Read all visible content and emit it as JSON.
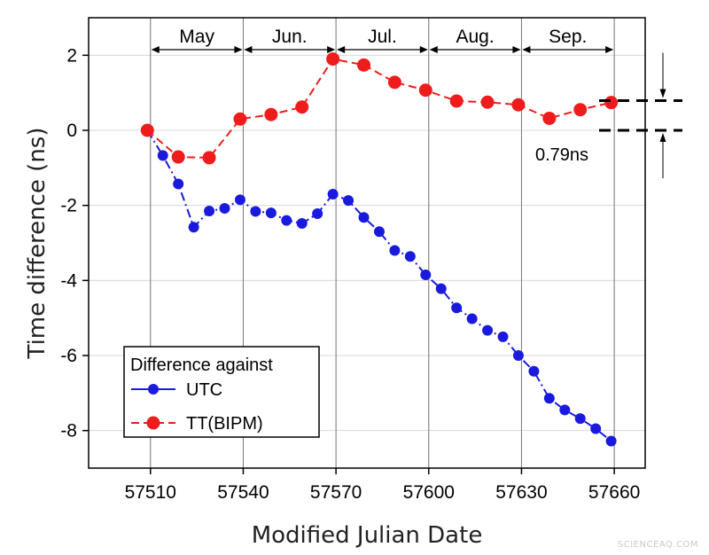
{
  "chart_data": {
    "type": "line",
    "xlabel": "Modified Julian Date",
    "ylabel": "Time difference (ns)",
    "xlim": [
      57490,
      57670
    ],
    "ylim": [
      -9,
      3
    ],
    "x_ticks": [
      57510,
      57540,
      57570,
      57600,
      57630,
      57660
    ],
    "y_ticks": [
      2,
      0,
      -2,
      -4,
      -6,
      -8
    ],
    "x_tick_labels": [
      "57510",
      "57540",
      "57570",
      "57600",
      "57630",
      "57660"
    ],
    "y_tick_labels": [
      "2",
      "0",
      "-2",
      "-4",
      "-6",
      "-8"
    ],
    "grid": true,
    "legend": {
      "title": "Difference against",
      "position": "bottom-left",
      "entries": [
        "UTC",
        "TT(BIPM)"
      ]
    },
    "months": [
      {
        "label": "May",
        "start": 57510,
        "end": 57540
      },
      {
        "label": "Jun.",
        "start": 57540,
        "end": 57570
      },
      {
        "label": "Jul.",
        "start": 57570,
        "end": 57600
      },
      {
        "label": "Aug.",
        "start": 57600,
        "end": 57630
      },
      {
        "label": "Sep.",
        "start": 57630,
        "end": 57660
      }
    ],
    "annotation": {
      "text": "0.79ns",
      "upper": 0.79,
      "lower": 0.0
    },
    "series": [
      {
        "name": "UTC",
        "color": "#1a1adf",
        "line_style": "dash-dot",
        "x": [
          57509,
          57514,
          57519,
          57524,
          57529,
          57534,
          57539,
          57544,
          57549,
          57554,
          57559,
          57564,
          57569,
          57574,
          57579,
          57584,
          57589,
          57594,
          57599,
          57604,
          57609,
          57614,
          57619,
          57624,
          57629,
          57634,
          57639,
          57644,
          57649,
          57654,
          57659
        ],
        "y": [
          0.0,
          -0.67,
          -1.43,
          -2.58,
          -2.15,
          -2.08,
          -1.85,
          -2.16,
          -2.2,
          -2.4,
          -2.48,
          -2.22,
          -1.7,
          -1.87,
          -2.32,
          -2.7,
          -3.2,
          -3.36,
          -3.85,
          -4.22,
          -4.73,
          -5.02,
          -5.33,
          -5.5,
          -6.0,
          -6.42,
          -7.14,
          -7.45,
          -7.68,
          -7.95,
          -8.28
        ]
      },
      {
        "name": "TT(BIPM)",
        "color": "#ef1c1c",
        "line_style": "dash",
        "x": [
          57509,
          57519,
          57529,
          57539,
          57549,
          57559,
          57569,
          57579,
          57589,
          57599,
          57609,
          57619,
          57629,
          57639,
          57649,
          57659
        ],
        "y": [
          0.0,
          -0.71,
          -0.73,
          0.3,
          0.42,
          0.62,
          1.9,
          1.74,
          1.28,
          1.07,
          0.78,
          0.75,
          0.68,
          0.32,
          0.55,
          0.74
        ]
      }
    ]
  },
  "watermark": "SCIENCEAQ.COM"
}
